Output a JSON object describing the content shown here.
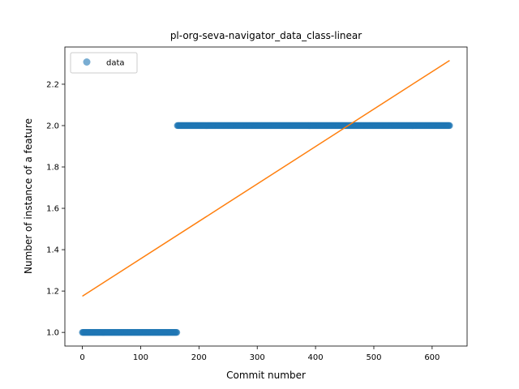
{
  "chart_data": {
    "type": "scatter",
    "title": "pl-org-seva-navigator_data_class-linear",
    "xlabel": "Commit number",
    "ylabel": "Number of instance of a feature",
    "xlim": [
      -30,
      660
    ],
    "ylim": [
      0.934,
      2.38
    ],
    "xticks": [
      0,
      100,
      200,
      300,
      400,
      500,
      600
    ],
    "yticks": [
      1.0,
      1.2,
      1.4,
      1.6,
      1.8,
      2.0,
      2.2
    ],
    "xtick_labels": [
      "0",
      "100",
      "200",
      "300",
      "400",
      "500",
      "600"
    ],
    "ytick_labels": [
      "1.0",
      "1.2",
      "1.4",
      "1.6",
      "1.8",
      "2.0",
      "2.2"
    ],
    "grid": false,
    "legend": {
      "position": "upper-left",
      "entries": [
        "data"
      ]
    },
    "series": [
      {
        "name": "data",
        "kind": "points",
        "color": "#1f77b4",
        "segments": [
          {
            "x_start": 0,
            "x_end": 162,
            "y": 1.0
          },
          {
            "x_start": 163,
            "x_end": 630,
            "y": 2.0
          }
        ]
      },
      {
        "kind": "fit-line",
        "color": "#ff7f0e",
        "x": [
          0,
          630
        ],
        "y": [
          1.175,
          2.315
        ]
      }
    ]
  }
}
